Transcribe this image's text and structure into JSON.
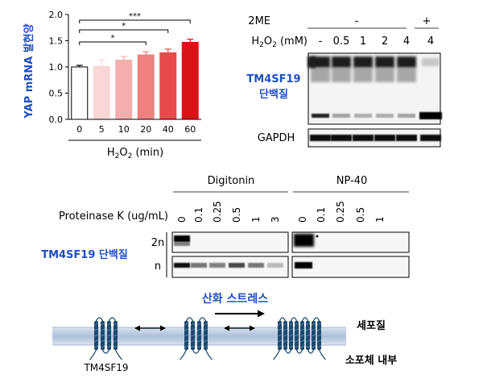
{
  "chart_data": {
    "type": "bar",
    "ylabel": "YAP mRNA 발현양",
    "xlabel_main": "H",
    "xlabel_sub1": "2",
    "xlabel_o": "O",
    "xlabel_sub2": "2",
    "xlabel_unit": " (min)",
    "categories": [
      "0",
      "5",
      "10",
      "20",
      "40",
      "60"
    ],
    "values": [
      1.0,
      1.01,
      1.13,
      1.23,
      1.27,
      1.47
    ],
    "errors": [
      0.03,
      0.12,
      0.07,
      0.06,
      0.07,
      0.06
    ],
    "ylim": [
      0,
      2.0
    ],
    "yticks": [
      "0.0",
      "0.5",
      "1.0",
      "1.5",
      "2.0"
    ],
    "bar_colors": [
      "#ffffff",
      "#f9d7d7",
      "#f4aeae",
      "#ee8080",
      "#e64a4a",
      "#d81418"
    ],
    "significance": [
      {
        "to": "20",
        "label": "*"
      },
      {
        "to": "40",
        "label": "*"
      },
      {
        "to": "60",
        "label": "***"
      }
    ]
  },
  "blot1": {
    "twome_label": "2ME",
    "twome_minus": "-",
    "twome_plus": "+",
    "conc_label_h": "H",
    "conc_label_sub1": "2",
    "conc_label_o": "O",
    "conc_label_sub2": "2",
    "conc_label_unit": " (mM)",
    "lanes": [
      "-",
      "0.5",
      "1",
      "2",
      "4",
      "4"
    ],
    "protein_label_1": "TM4SF19",
    "protein_label_2": "단백질",
    "loading_label": "GAPDH"
  },
  "blot2": {
    "group1": "Digitonin",
    "group2": "NP-40",
    "pk_label": "Proteinase K (ug/mL)",
    "concs": [
      "0",
      "0.1",
      "0.25",
      "0.5",
      "1",
      "3"
    ],
    "concs2": [
      "0",
      "0.1",
      "0.25",
      "0.5",
      "1"
    ],
    "row_2n": "2n",
    "row_n": "n",
    "protein_label": "TM4SF19 단백질"
  },
  "diagram": {
    "stress_label": "산화 스트레스",
    "cytoplasm": "세포질",
    "lysosome": "소포체 내부",
    "protein": "TM4SF19"
  },
  "colors": {
    "blue_label": "#1f4fbf",
    "membrane_light": "#c9d6e8",
    "helix": "#1e4a6e"
  }
}
